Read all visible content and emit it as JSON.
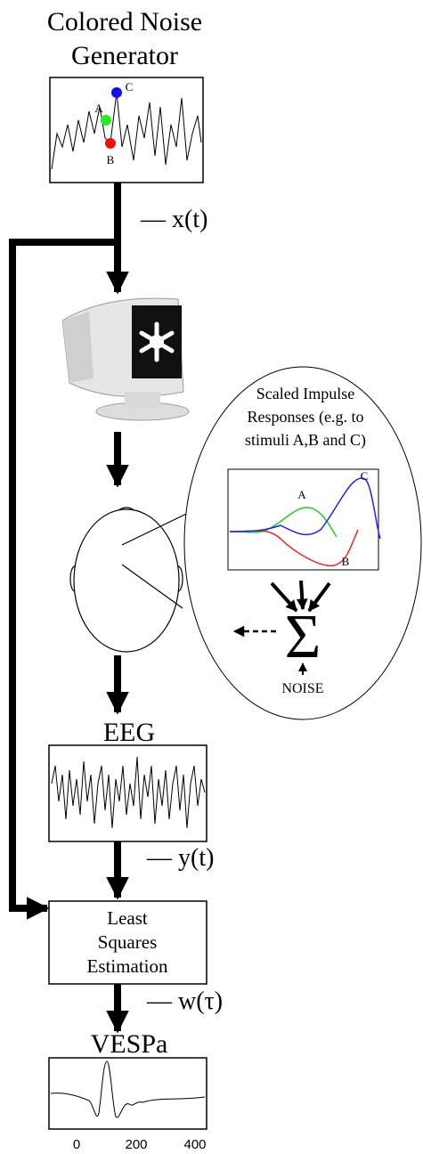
{
  "generator": {
    "title_lines": [
      "Colored Noise",
      "Generator"
    ],
    "points": [
      "A",
      "B",
      "C"
    ]
  },
  "signals": {
    "x": "— x(t)",
    "y": "— y(t)",
    "w": "— w(τ)"
  },
  "inset": {
    "title_lines": [
      "Scaled Impulse",
      "Responses (e.g. to",
      "stimuli A,B and C)"
    ],
    "curve_labels": [
      "A",
      "B",
      "C"
    ],
    "sum": "Σ",
    "noise": "NOISE"
  },
  "eeg": {
    "title": "EEG"
  },
  "estimator": {
    "lines": [
      "Least",
      "Squares",
      "Estimation"
    ]
  },
  "output": {
    "title": "VESPa",
    "xticks": [
      0,
      200,
      400
    ]
  }
}
